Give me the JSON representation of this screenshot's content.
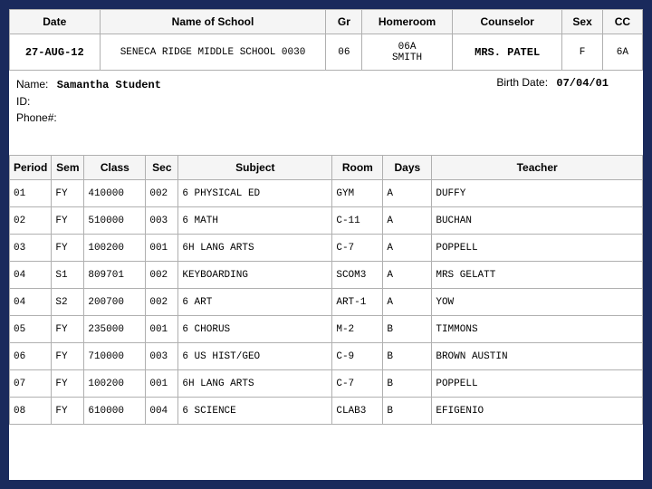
{
  "colors": {
    "frame": "#1a2a5c",
    "header_bg": "#f5f5f5",
    "border": "#b0b0b0",
    "text": "#000000"
  },
  "header": {
    "columns": [
      "Date",
      "Name of School",
      "Gr",
      "Homeroom",
      "Counselor",
      "Sex",
      "CC"
    ],
    "values": {
      "date": "27-AUG-12",
      "school": "SENECA RIDGE MIDDLE SCHOOL 0030",
      "gr": "06",
      "homeroom": "06A\nSMITH",
      "counselor": "MRS. PATEL",
      "sex": "F",
      "cc": "6A"
    }
  },
  "info": {
    "name_label": "Name:",
    "name_value": "Samantha Student",
    "id_label": "ID:",
    "phone_label": "Phone#:",
    "birth_label": "Birth Date:",
    "birth_value": "07/04/01"
  },
  "schedule": {
    "columns": [
      "Period",
      "Sem",
      "Class",
      "Sec",
      "Subject",
      "Room",
      "Days",
      "Teacher"
    ],
    "rows": [
      {
        "period": "01",
        "sem": "FY",
        "class": "410000",
        "sec": "002",
        "subject": "6 PHYSICAL ED",
        "room": "GYM",
        "days": "A",
        "teacher": "DUFFY"
      },
      {
        "period": "02",
        "sem": "FY",
        "class": "510000",
        "sec": "003",
        "subject": "6 MATH",
        "room": "C-11",
        "days": "A",
        "teacher": "BUCHAN"
      },
      {
        "period": "03",
        "sem": "FY",
        "class": "100200",
        "sec": "001",
        "subject": "6H LANG ARTS",
        "room": "C-7",
        "days": "A",
        "teacher": "POPPELL"
      },
      {
        "period": "04",
        "sem": "S1",
        "class": "809701",
        "sec": "002",
        "subject": "KEYBOARDING",
        "room": "SCOM3",
        "days": "A",
        "teacher": "MRS GELATT"
      },
      {
        "period": "04",
        "sem": "S2",
        "class": "200700",
        "sec": "002",
        "subject": "6 ART",
        "room": "ART-1",
        "days": "A",
        "teacher": "YOW"
      },
      {
        "period": "05",
        "sem": "FY",
        "class": "235000",
        "sec": "001",
        "subject": "6 CHORUS",
        "room": "M-2",
        "days": "B",
        "teacher": "TIMMONS"
      },
      {
        "period": "06",
        "sem": "FY",
        "class": "710000",
        "sec": "003",
        "subject": "6 US HIST/GEO",
        "room": "C-9",
        "days": "B",
        "teacher": "BROWN AUSTIN"
      },
      {
        "period": "07",
        "sem": "FY",
        "class": "100200",
        "sec": "001",
        "subject": "6H LANG ARTS",
        "room": "C-7",
        "days": "B",
        "teacher": "POPPELL"
      },
      {
        "period": "08",
        "sem": "FY",
        "class": "610000",
        "sec": "004",
        "subject": "6 SCIENCE",
        "room": "CLAB3",
        "days": "B",
        "teacher": "EFIGENIO"
      }
    ]
  }
}
